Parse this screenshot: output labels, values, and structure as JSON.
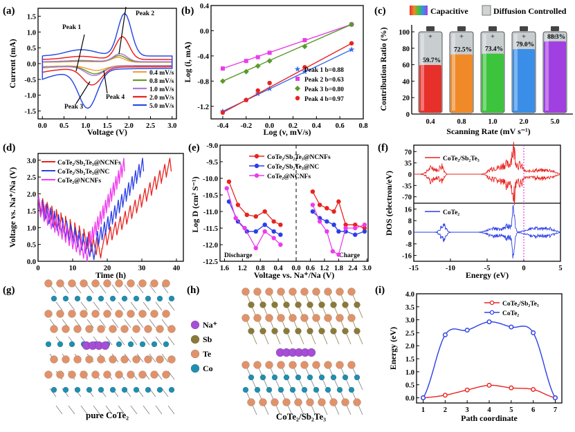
{
  "panels": {
    "a": {
      "label": "(a)",
      "xlabel": "Voltage (V)",
      "ylabel": "Current (mA)",
      "xticks": [
        "0.0",
        "0.5",
        "1.0",
        "1.5",
        "2.0",
        "2.5",
        "3.0"
      ],
      "yticks": [
        "1.5",
        "1.0",
        "0.5",
        "0.0",
        "-0.5",
        "-1.0",
        "-1.5"
      ],
      "annotations": [
        "Peak 1",
        "Peak 2",
        "Peak 3",
        "Peak 4"
      ],
      "legend": [
        {
          "name": "0.4 mV/s",
          "color": "#f5a03c"
        },
        {
          "name": "0.8 mV/s",
          "color": "#6b9a2d"
        },
        {
          "name": "1.0 mV/s",
          "color": "#b07bd6"
        },
        {
          "name": "2.0 mV/s",
          "color": "#e8231f"
        },
        {
          "name": "5.0 mV/s",
          "color": "#2b4de6"
        }
      ]
    },
    "b": {
      "label": "(b)",
      "xlabel": "Log (v, mV/s)",
      "ylabel": "Log (i, mA)",
      "xticks": [
        "-0.4",
        "-0.2",
        "0.0",
        "0.2",
        "0.4",
        "0.6",
        "0.8"
      ],
      "yticks": [
        "0.4",
        "0.0",
        "-0.4",
        "-0.8",
        "-1.2"
      ],
      "legend": [
        {
          "name": "Peak 1 b=0.88",
          "color": "#3a6ee8",
          "marker": "star"
        },
        {
          "name": "Peak 2 b=0.63",
          "color": "#e83ee8",
          "marker": "square"
        },
        {
          "name": "Peak 3 b=0.80",
          "color": "#5a9a2a",
          "marker": "diamond"
        },
        {
          "name": "Peak 4 b=0.97",
          "color": "#e8231f",
          "marker": "circle"
        }
      ]
    },
    "c": {
      "label": "(c)",
      "legend_cap": "Capacitive",
      "legend_diff": "Diffusion Controlled",
      "xlabel": "Scanning Rate (mV s⁻¹)",
      "ylabel": "Contribution Ratio (%)",
      "yticks": [
        "100",
        "80",
        "60",
        "40",
        "20",
        "0"
      ]
    },
    "d": {
      "label": "(d)",
      "xlabel": "Time (h)",
      "ylabel": "Voltage vs. Na⁺/Na (V)",
      "xticks": [
        "0",
        "10",
        "20",
        "30",
        "40"
      ],
      "yticks": [
        "3.0",
        "2.5",
        "2.0",
        "1.5",
        "1.0",
        "0.5",
        "0.0"
      ],
      "legend": [
        {
          "name": "CoTe₂/Sb₂Te₃@NCNFs",
          "color": "#e8231f"
        },
        {
          "name": "CoTe₂/Sb₂Te₃@NC",
          "color": "#2b3ee6"
        },
        {
          "name": "CoTe₂@NCNFs",
          "color": "#ee3aee"
        }
      ]
    },
    "e": {
      "label": "(e)",
      "xlabel": "Voltage vs. Na⁺/Na (V)",
      "ylabel": "Log D (cm² S⁻¹)",
      "xticks": [
        "1.6",
        "1.2",
        "0.8",
        "0.4",
        "0.0",
        "0.6",
        "1.2",
        "1.8",
        "2.4",
        "3.0"
      ],
      "yticks": [
        "-9.0",
        "-9.5",
        "-10.0",
        "-10.5",
        "-11.0",
        "-11.5",
        "-12.0",
        "-12.5"
      ],
      "discharge": "Discharge",
      "charge": "Charge",
      "legend": [
        {
          "name": "CoTe₂/Sb₂Te₃@NCNFs",
          "color": "#e8231f"
        },
        {
          "name": "CoTe₂/Sb₂Te₃@NC",
          "color": "#2b3ee6"
        },
        {
          "name": "CoTe₂@NCNFs",
          "color": "#ee3aee"
        }
      ]
    },
    "f": {
      "label": "(f)",
      "xlabel": "Energy (eV)",
      "ylabel": "DOS (electron/eV)",
      "xticks": [
        "-15",
        "-10",
        "-5",
        "0",
        "5"
      ],
      "yticks_top": [
        "70",
        "35",
        "0",
        "-35",
        "-70"
      ],
      "yticks_bot": [
        "16",
        "8",
        "0",
        "-8",
        "-16"
      ],
      "top_label": "CoTe₂/Sb₂Te₃",
      "bot_label": "CoTe₂"
    },
    "g": {
      "label": "(g)",
      "caption": "pure CoTe₂"
    },
    "h": {
      "label": "(h)",
      "caption": "CoTe₂/Sb₂Te₃",
      "legend": [
        {
          "name": "Na⁺",
          "color": "#a64ed6"
        },
        {
          "name": "Sb",
          "color": "#8a7a3a"
        },
        {
          "name": "Te",
          "color": "#e0936a"
        },
        {
          "name": "Co",
          "color": "#1f8fb0"
        }
      ]
    },
    "i": {
      "label": "(i)",
      "xlabel": "Path coordinate",
      "ylabel": "Energy (eV)",
      "xticks": [
        "1",
        "2",
        "3",
        "4",
        "5",
        "6",
        "7"
      ],
      "yticks": [
        "4.0",
        "3.5",
        "3.0",
        "2.5",
        "2.0",
        "1.5",
        "1.0",
        "0.5",
        "0.0"
      ],
      "legend": [
        {
          "name": "CoTe₂/Sb₂Te₃",
          "color": "#e8231f"
        },
        {
          "name": "CoTe₂",
          "color": "#2b3ee6"
        }
      ]
    }
  },
  "chart_data": [
    {
      "type": "line",
      "panel": "a",
      "title": "",
      "xlabel": "Voltage (V)",
      "ylabel": "Current (mA)",
      "xlim": [
        -0.1,
        3.1
      ],
      "ylim": [
        -1.75,
        1.75
      ],
      "series": [
        {
          "name": "0.4 mV/s",
          "anodic_peak": [
            1.75,
            0.15
          ],
          "cathodic_peak": [
            1.25,
            -0.15
          ]
        },
        {
          "name": "0.8 mV/s",
          "anodic_peak": [
            1.78,
            0.2
          ],
          "cathodic_peak": [
            1.22,
            -0.25
          ]
        },
        {
          "name": "1.0 mV/s",
          "anodic_peak": [
            1.8,
            0.25
          ],
          "cathodic_peak": [
            1.2,
            -0.3
          ]
        },
        {
          "name": "2.0 mV/s",
          "anodic_peak": [
            1.85,
            0.72
          ],
          "cathodic_peak": [
            1.15,
            -0.55
          ]
        },
        {
          "name": "5.0 mV/s",
          "anodic_peak": [
            1.9,
            1.35
          ],
          "cathodic_peak": [
            1.05,
            -1.2
          ]
        }
      ]
    },
    {
      "type": "scatter",
      "panel": "b",
      "xlabel": "Log (v, mV/s)",
      "ylabel": "Log (i, mA)",
      "xlim": [
        -0.5,
        0.8
      ],
      "ylim": [
        -1.4,
        0.4
      ],
      "x": [
        -0.4,
        -0.2,
        -0.1,
        0.0,
        0.3,
        0.7
      ],
      "series": [
        {
          "name": "Peak 1 b=0.88",
          "values": [
            -1.28,
            -1.1,
            -1.0,
            -0.92,
            -0.65,
            -0.3
          ]
        },
        {
          "name": "Peak 2 b=0.63",
          "values": [
            -0.6,
            -0.48,
            -0.42,
            -0.35,
            -0.15,
            0.1
          ]
        },
        {
          "name": "Peak 3 b=0.80",
          "values": [
            -0.8,
            -0.65,
            -0.56,
            -0.48,
            -0.25,
            0.1
          ]
        },
        {
          "name": "Peak 4 b=0.97",
          "values": [
            -1.3,
            -1.1,
            -0.95,
            -0.83,
            -0.58,
            -0.2
          ]
        }
      ]
    },
    {
      "type": "bar",
      "panel": "c",
      "categories": [
        "0.4",
        "0.8",
        "1.0",
        "2.0",
        "5.0"
      ],
      "values": [
        59.7,
        72.5,
        73.4,
        79.0,
        88.3
      ],
      "labels": [
        "59.7%",
        "72.5%",
        "73.4%",
        "79.0%",
        "88.3%"
      ],
      "colors": [
        "#e8302a",
        "#f08a28",
        "#3cc43c",
        "#3a8ee8",
        "#a040e0"
      ],
      "ylim": [
        0,
        100
      ]
    },
    {
      "type": "line",
      "panel": "d",
      "xlabel": "Time (h)",
      "ylabel": "Voltage vs. Na+/Na (V)",
      "xlim": [
        0,
        42
      ],
      "ylim": [
        0,
        3.2
      ],
      "series": [
        {
          "name": "CoTe2/Sb2Te3@NCNFs",
          "discharge_end_h": 18.5,
          "end_h": 38.5
        },
        {
          "name": "CoTe2/Sb2Te3@NC",
          "discharge_end_h": 16.5,
          "end_h": 30.5
        },
        {
          "name": "CoTe2@NCNFs",
          "discharge_end_h": 14.5,
          "end_h": 25.0
        }
      ]
    },
    {
      "type": "line",
      "panel": "e",
      "xlabel": "Voltage vs. Na+/Na (V)",
      "ylabel": "Log D (cm2 S-1)",
      "ylim": [
        -12.5,
        -9.0
      ],
      "series": [
        {
          "name": "CoTe2/Sb2Te3@NCNFs",
          "discharge": [
            [
              1.5,
              -10.1
            ],
            [
              1.3,
              -10.8
            ],
            [
              1.1,
              -11.1
            ],
            [
              0.9,
              -11.15
            ],
            [
              0.7,
              -11.0
            ],
            [
              0.5,
              -11.3
            ],
            [
              0.35,
              -11.4
            ]
          ],
          "charge": [
            [
              0.7,
              -10.4
            ],
            [
              1.0,
              -10.8
            ],
            [
              1.3,
              -10.9
            ],
            [
              1.6,
              -11.0
            ],
            [
              1.8,
              -10.7
            ],
            [
              2.1,
              -11.4
            ],
            [
              2.5,
              -11.4
            ],
            [
              2.9,
              -11.5
            ]
          ]
        },
        {
          "name": "CoTe2/Sb2Te3@NC",
          "discharge": [
            [
              1.5,
              -10.7
            ],
            [
              1.3,
              -11.3
            ],
            [
              1.1,
              -11.6
            ],
            [
              0.9,
              -11.6
            ],
            [
              0.7,
              -11.4
            ],
            [
              0.5,
              -11.6
            ],
            [
              0.35,
              -11.7
            ]
          ],
          "charge": [
            [
              0.7,
              -11.0
            ],
            [
              1.0,
              -11.2
            ],
            [
              1.3,
              -11.3
            ],
            [
              1.6,
              -11.4
            ],
            [
              1.8,
              -11.6
            ],
            [
              2.1,
              -11.6
            ],
            [
              2.5,
              -11.7
            ],
            [
              2.9,
              -11.6
            ]
          ]
        },
        {
          "name": "CoTe2@NCNFs",
          "discharge": [
            [
              1.55,
              -10.3
            ],
            [
              1.35,
              -11.2
            ],
            [
              1.15,
              -11.5
            ],
            [
              0.9,
              -12.1
            ],
            [
              0.7,
              -11.6
            ],
            [
              0.5,
              -11.8
            ],
            [
              0.35,
              -12.0
            ]
          ],
          "charge": [
            [
              0.7,
              -10.8
            ],
            [
              1.0,
              -11.3
            ],
            [
              1.3,
              -11.6
            ],
            [
              1.55,
              -12.2
            ],
            [
              1.8,
              -12.3
            ],
            [
              2.1,
              -11.5
            ],
            [
              2.5,
              -11.5
            ],
            [
              2.9,
              -11.4
            ]
          ]
        }
      ]
    },
    {
      "type": "line",
      "panel": "f",
      "xlabel": "Energy (eV)",
      "ylabel": "DOS (electron/eV)",
      "xlim": [
        -15,
        5
      ],
      "series": [
        {
          "name": "CoTe2/Sb2Te3",
          "ylim": [
            -90,
            90
          ]
        },
        {
          "name": "CoTe2",
          "ylim": [
            -20,
            20
          ]
        }
      ]
    },
    {
      "type": "line",
      "panel": "i",
      "xlabel": "Path coordinate",
      "ylabel": "Energy (eV)",
      "xlim": [
        0.7,
        7.3
      ],
      "ylim": [
        -0.2,
        4.0
      ],
      "x": [
        1,
        2,
        3,
        4,
        5,
        6,
        7
      ],
      "series": [
        {
          "name": "CoTe2/Sb2Te3",
          "values": [
            0.0,
            0.1,
            0.3,
            0.48,
            0.38,
            0.32,
            0.0
          ]
        },
        {
          "name": "CoTe2",
          "values": [
            0.0,
            2.42,
            2.6,
            2.92,
            2.72,
            2.5,
            0.0
          ]
        }
      ]
    }
  ]
}
